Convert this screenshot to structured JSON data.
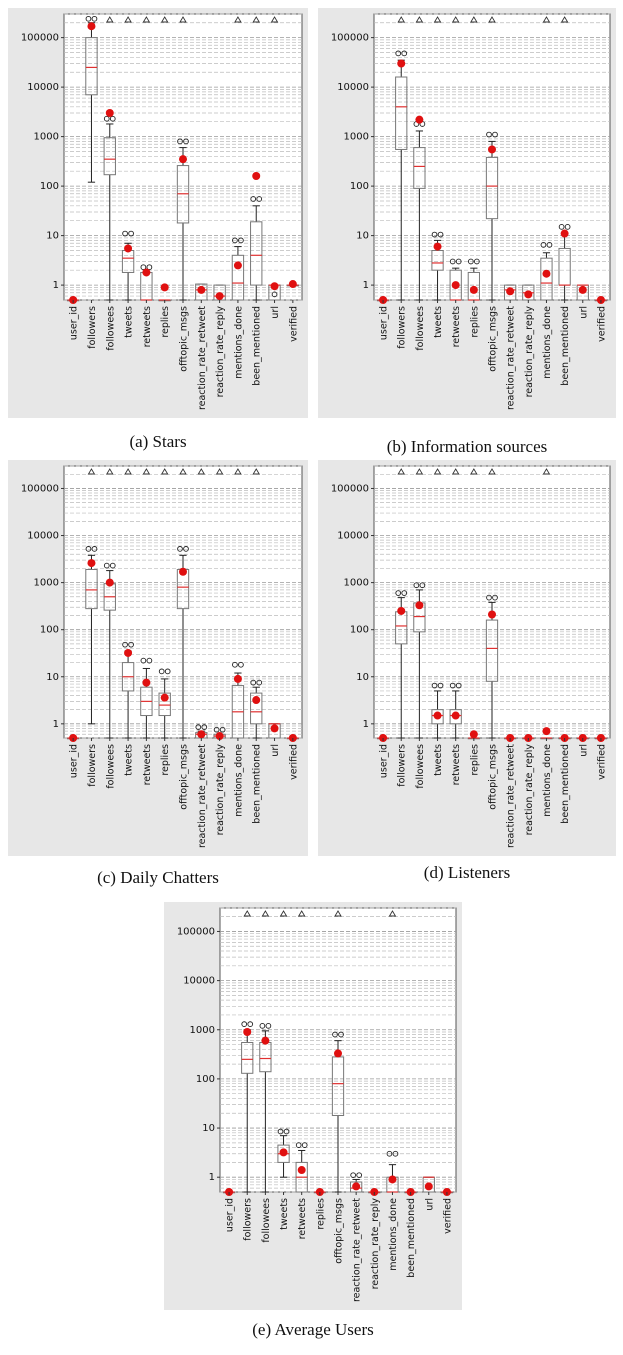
{
  "chart_data": [
    {
      "type": "boxplot",
      "title": "",
      "caption": "(a) Stars",
      "scale": "log",
      "ylim": [
        0.5,
        300000
      ],
      "yticks": [
        1,
        10,
        100,
        1000,
        10000,
        100000
      ],
      "ytick_labels": [
        "1",
        "10",
        "100",
        "1000",
        "10000",
        "100000"
      ],
      "grid": "dashed minor log gridlines",
      "categories": [
        "user_id",
        "followers",
        "followees",
        "tweets",
        "retweets",
        "replies",
        "offtopic_msgs",
        "reaction_rate_retweet",
        "reaction_rate_reply",
        "mentions_done",
        "been_mentioned",
        "url",
        "verified"
      ],
      "boxes": [
        {
          "q1": 0.5,
          "median": 0.5,
          "q3": 0.5,
          "low": 0.5,
          "high": 0.5,
          "mean": 0.5,
          "outliers": [],
          "top_marker": false
        },
        {
          "q1": 7000,
          "median": 25000,
          "q3": 100000,
          "low": 120,
          "high": 200000,
          "mean": 170000,
          "outliers": [
            240000,
            240000
          ],
          "top_marker": false
        },
        {
          "q1": 170,
          "median": 350,
          "q3": 950,
          "low": 0.5,
          "high": 1800,
          "mean": 3000,
          "outliers": [
            2300,
            2300
          ],
          "top_marker": true
        },
        {
          "q1": 1.8,
          "median": 3.5,
          "q3": 5,
          "low": 0.5,
          "high": 7,
          "mean": 5.5,
          "outliers": [
            11,
            11
          ],
          "top_marker": true
        },
        {
          "q1": 0.5,
          "median": 0.5,
          "q3": 1.8,
          "low": 0.5,
          "high": 1.8,
          "mean": 1.8,
          "outliers": [
            2.3,
            2.3
          ],
          "top_marker": true
        },
        {
          "q1": 0.5,
          "median": 0.5,
          "q3": 0.5,
          "low": 0.5,
          "high": 0.5,
          "mean": 0.9,
          "outliers": [],
          "top_marker": true
        },
        {
          "q1": 18,
          "median": 70,
          "q3": 260,
          "low": 0.5,
          "high": 600,
          "mean": 350,
          "outliers": [
            800,
            800
          ],
          "top_marker": true
        },
        {
          "q1": 0.5,
          "median": 0.8,
          "q3": 1.05,
          "low": 0.5,
          "high": 1.05,
          "mean": 0.8,
          "outliers": [],
          "top_marker": false
        },
        {
          "q1": 0.5,
          "median": 0.6,
          "q3": 1.0,
          "low": 0.5,
          "high": 1.0,
          "mean": 0.6,
          "outliers": [],
          "top_marker": false
        },
        {
          "q1": 0.5,
          "median": 1.1,
          "q3": 4,
          "low": 0.5,
          "high": 6,
          "mean": 2.5,
          "outliers": [
            8,
            8
          ],
          "top_marker": true
        },
        {
          "q1": 1,
          "median": 4,
          "q3": 19,
          "low": 0.5,
          "high": 40,
          "mean": 160,
          "outliers": [
            55,
            55
          ],
          "top_marker": true
        },
        {
          "q1": 0.5,
          "median": 1.0,
          "q3": 1.0,
          "low": 0.5,
          "high": 1.0,
          "mean": 0.95,
          "outliers": [
            0.65
          ],
          "top_marker": true
        },
        {
          "q1": 1.0,
          "median": 1.0,
          "q3": 1.0,
          "low": 1.0,
          "high": 1.0,
          "mean": 1.05,
          "outliers": [],
          "top_marker": false
        }
      ]
    },
    {
      "type": "boxplot",
      "title": "",
      "caption": "(b) Information sources",
      "scale": "log",
      "ylim": [
        0.5,
        300000
      ],
      "yticks": [
        1,
        10,
        100,
        1000,
        10000,
        100000
      ],
      "ytick_labels": [
        "1",
        "10",
        "100",
        "1000",
        "10000",
        "100000"
      ],
      "categories": [
        "user_id",
        "followers",
        "followees",
        "tweets",
        "retweets",
        "replies",
        "offtopic_msgs",
        "reaction_rate_retweet",
        "reaction_rate_reply",
        "mentions_done",
        "been_mentioned",
        "url",
        "verified"
      ],
      "boxes": [
        {
          "q1": 0.5,
          "median": 0.5,
          "q3": 0.5,
          "low": 0.5,
          "high": 0.5,
          "mean": 0.5,
          "outliers": [],
          "top_marker": false
        },
        {
          "q1": 550,
          "median": 4000,
          "q3": 16000,
          "low": 0.5,
          "high": 35000,
          "mean": 30000,
          "outliers": [
            48000,
            48000
          ],
          "top_marker": true
        },
        {
          "q1": 90,
          "median": 250,
          "q3": 600,
          "low": 0.5,
          "high": 1300,
          "mean": 2200,
          "outliers": [
            1800,
            1800
          ],
          "top_marker": true
        },
        {
          "q1": 2,
          "median": 2.8,
          "q3": 5,
          "low": 0.5,
          "high": 8,
          "mean": 6,
          "outliers": [
            10.5,
            10.5
          ],
          "top_marker": true
        },
        {
          "q1": 0.5,
          "median": 0.5,
          "q3": 2,
          "low": 0.5,
          "high": 2.2,
          "mean": 1.0,
          "outliers": [
            3,
            3
          ],
          "top_marker": true
        },
        {
          "q1": 0.5,
          "median": 0.5,
          "q3": 1.8,
          "low": 0.5,
          "high": 2.2,
          "mean": 0.8,
          "outliers": [
            3,
            3
          ],
          "top_marker": true
        },
        {
          "q1": 22,
          "median": 100,
          "q3": 380,
          "low": 0.5,
          "high": 800,
          "mean": 550,
          "outliers": [
            1100,
            1100
          ],
          "top_marker": true
        },
        {
          "q1": 0.5,
          "median": 0.8,
          "q3": 1.0,
          "low": 0.5,
          "high": 1.0,
          "mean": 0.75,
          "outliers": [],
          "top_marker": false
        },
        {
          "q1": 0.5,
          "median": 0.7,
          "q3": 1.0,
          "low": 0.5,
          "high": 1.0,
          "mean": 0.65,
          "outliers": [],
          "top_marker": false
        },
        {
          "q1": 0.5,
          "median": 1.1,
          "q3": 3.5,
          "low": 0.5,
          "high": 4.5,
          "mean": 1.7,
          "outliers": [
            6.5,
            6.5
          ],
          "top_marker": true
        },
        {
          "q1": 1.0,
          "median": 1.0,
          "q3": 5.5,
          "low": 0.5,
          "high": 11,
          "mean": 11,
          "outliers": [
            15,
            15
          ],
          "top_marker": true
        },
        {
          "q1": 0.5,
          "median": 1.0,
          "q3": 1.0,
          "low": 0.5,
          "high": 1.0,
          "mean": 0.8,
          "outliers": [],
          "top_marker": false
        },
        {
          "q1": 0.5,
          "median": 0.5,
          "q3": 0.5,
          "low": 0.5,
          "high": 0.5,
          "mean": 0.5,
          "outliers": [],
          "top_marker": false
        }
      ]
    },
    {
      "type": "boxplot",
      "title": "",
      "caption": "(c) Daily Chatters",
      "scale": "log",
      "ylim": [
        0.5,
        300000
      ],
      "yticks": [
        1,
        10,
        100,
        1000,
        10000,
        100000
      ],
      "ytick_labels": [
        "1",
        "10",
        "100",
        "1000",
        "10000",
        "100000"
      ],
      "categories": [
        "user_id",
        "followers",
        "followees",
        "tweets",
        "retweets",
        "replies",
        "offtopic_msgs",
        "reaction_rate_retweet",
        "reaction_rate_reply",
        "mentions_done",
        "been_mentioned",
        "url",
        "verified"
      ],
      "boxes": [
        {
          "q1": 0.5,
          "median": 0.5,
          "q3": 0.5,
          "low": 0.5,
          "high": 0.5,
          "mean": 0.5,
          "outliers": [],
          "top_marker": false
        },
        {
          "q1": 280,
          "median": 700,
          "q3": 1900,
          "low": 1,
          "high": 3800,
          "mean": 2600,
          "outliers": [
            5200,
            5200
          ],
          "top_marker": true
        },
        {
          "q1": 260,
          "median": 500,
          "q3": 950,
          "low": 0.5,
          "high": 1800,
          "mean": 1000,
          "outliers": [
            2300,
            2300
          ],
          "top_marker": true
        },
        {
          "q1": 5,
          "median": 10,
          "q3": 20,
          "low": 0.5,
          "high": 35,
          "mean": 32,
          "outliers": [
            48,
            48
          ],
          "top_marker": true
        },
        {
          "q1": 1.5,
          "median": 3,
          "q3": 6,
          "low": 0.5,
          "high": 15,
          "mean": 7.5,
          "outliers": [
            22,
            22
          ],
          "top_marker": true
        },
        {
          "q1": 1.5,
          "median": 2.5,
          "q3": 4.5,
          "low": 0.5,
          "high": 9,
          "mean": 3.6,
          "outliers": [
            13,
            13
          ],
          "top_marker": true
        },
        {
          "q1": 280,
          "median": 800,
          "q3": 1900,
          "low": 0.5,
          "high": 3800,
          "mean": 1700,
          "outliers": [
            5200,
            5200
          ],
          "top_marker": true
        },
        {
          "q1": 0.5,
          "median": 0.6,
          "q3": 0.65,
          "low": 0.5,
          "high": 0.7,
          "mean": 0.6,
          "outliers": [
            0.85,
            0.85
          ],
          "top_marker": true
        },
        {
          "q1": 0.5,
          "median": 0.55,
          "q3": 0.6,
          "low": 0.5,
          "high": 0.6,
          "mean": 0.55,
          "outliers": [
            0.75,
            0.75
          ],
          "top_marker": true
        },
        {
          "q1": 0.5,
          "median": 1.8,
          "q3": 6.5,
          "low": 0.5,
          "high": 12,
          "mean": 9,
          "outliers": [
            18,
            18
          ],
          "top_marker": true
        },
        {
          "q1": 1,
          "median": 1.8,
          "q3": 4.5,
          "low": 0.5,
          "high": 6,
          "mean": 3.2,
          "outliers": [
            7.5,
            7.5
          ],
          "top_marker": true
        },
        {
          "q1": 0.5,
          "median": 1.0,
          "q3": 1.0,
          "low": 0.5,
          "high": 1.0,
          "mean": 0.8,
          "outliers": [],
          "top_marker": false
        },
        {
          "q1": 0.5,
          "median": 0.5,
          "q3": 0.5,
          "low": 0.5,
          "high": 0.5,
          "mean": 0.5,
          "outliers": [],
          "top_marker": false
        }
      ]
    },
    {
      "type": "boxplot",
      "title": "",
      "caption": "(d) Listeners",
      "scale": "log",
      "ylim": [
        0.5,
        300000
      ],
      "yticks": [
        1,
        10,
        100,
        1000,
        10000,
        100000
      ],
      "ytick_labels": [
        "1",
        "10",
        "100",
        "1000",
        "10000",
        "100000"
      ],
      "categories": [
        "user_id",
        "followers",
        "followees",
        "tweets",
        "retweets",
        "replies",
        "offtopic_msgs",
        "reaction_rate_retweet",
        "reaction_rate_reply",
        "mentions_done",
        "been_mentioned",
        "url",
        "verified"
      ],
      "boxes": [
        {
          "q1": 0.5,
          "median": 0.5,
          "q3": 0.5,
          "low": 0.5,
          "high": 0.5,
          "mean": 0.5,
          "outliers": [],
          "top_marker": false
        },
        {
          "q1": 50,
          "median": 120,
          "q3": 240,
          "low": 0.5,
          "high": 480,
          "mean": 250,
          "outliers": [
            600,
            600
          ],
          "top_marker": true
        },
        {
          "q1": 90,
          "median": 190,
          "q3": 370,
          "low": 0.5,
          "high": 700,
          "mean": 330,
          "outliers": [
            880,
            880
          ],
          "top_marker": true
        },
        {
          "q1": 1.0,
          "median": 1.5,
          "q3": 2.0,
          "low": 0.5,
          "high": 5,
          "mean": 1.5,
          "outliers": [
            6.5,
            6.5
          ],
          "top_marker": true
        },
        {
          "q1": 1.0,
          "median": 1.5,
          "q3": 2.0,
          "low": 0.5,
          "high": 5,
          "mean": 1.5,
          "outliers": [
            6.5,
            6.5
          ],
          "top_marker": true
        },
        {
          "q1": 0.5,
          "median": 0.5,
          "q3": 0.5,
          "low": 0.5,
          "high": 0.5,
          "mean": 0.6,
          "outliers": [],
          "top_marker": true
        },
        {
          "q1": 8,
          "median": 40,
          "q3": 160,
          "low": 0.5,
          "high": 380,
          "mean": 210,
          "outliers": [
            480,
            480
          ],
          "top_marker": true
        },
        {
          "q1": 0.5,
          "median": 0.5,
          "q3": 0.5,
          "low": 0.5,
          "high": 0.5,
          "mean": 0.5,
          "outliers": [],
          "top_marker": false
        },
        {
          "q1": 0.5,
          "median": 0.5,
          "q3": 0.5,
          "low": 0.5,
          "high": 0.5,
          "mean": 0.5,
          "outliers": [],
          "top_marker": false
        },
        {
          "q1": 0.5,
          "median": 0.5,
          "q3": 0.5,
          "low": 0.5,
          "high": 0.5,
          "mean": 0.7,
          "outliers": [],
          "top_marker": true
        },
        {
          "q1": 0.5,
          "median": 0.5,
          "q3": 0.5,
          "low": 0.5,
          "high": 0.5,
          "mean": 0.5,
          "outliers": [],
          "top_marker": false
        },
        {
          "q1": 0.5,
          "median": 0.5,
          "q3": 0.5,
          "low": 0.5,
          "high": 0.5,
          "mean": 0.5,
          "outliers": [],
          "top_marker": false
        },
        {
          "q1": 0.5,
          "median": 0.5,
          "q3": 0.5,
          "low": 0.5,
          "high": 0.5,
          "mean": 0.5,
          "outliers": [],
          "top_marker": false
        }
      ]
    },
    {
      "type": "boxplot",
      "title": "",
      "caption": "(e) Average Users",
      "scale": "log",
      "ylim": [
        0.5,
        300000
      ],
      "yticks": [
        1,
        10,
        100,
        1000,
        10000,
        100000
      ],
      "ytick_labels": [
        "1",
        "10",
        "100",
        "1000",
        "10000",
        "100000"
      ],
      "categories": [
        "user_id",
        "followers",
        "followees",
        "tweets",
        "retweets",
        "replies",
        "offtopic_msgs",
        "reaction_rate_retweet",
        "reaction_rate_reply",
        "mentions_done",
        "been_mentioned",
        "url",
        "verified"
      ],
      "boxes": [
        {
          "q1": 0.5,
          "median": 0.5,
          "q3": 0.5,
          "low": 0.5,
          "high": 0.5,
          "mean": 0.5,
          "outliers": [],
          "top_marker": false
        },
        {
          "q1": 130,
          "median": 250,
          "q3": 550,
          "low": 0.5,
          "high": 1000,
          "mean": 900,
          "outliers": [
            1300,
            1300
          ],
          "top_marker": true
        },
        {
          "q1": 140,
          "median": 260,
          "q3": 550,
          "low": 0.5,
          "high": 950,
          "mean": 600,
          "outliers": [
            1200,
            1200
          ],
          "top_marker": true
        },
        {
          "q1": 2,
          "median": 3,
          "q3": 4.5,
          "low": 1,
          "high": 7,
          "mean": 3.2,
          "outliers": [
            8.5,
            8.5
          ],
          "top_marker": true
        },
        {
          "q1": 0.5,
          "median": 1.0,
          "q3": 2,
          "low": 0.5,
          "high": 3.5,
          "mean": 1.4,
          "outliers": [
            4.5,
            4.5
          ],
          "top_marker": true
        },
        {
          "q1": 0.5,
          "median": 0.5,
          "q3": 0.5,
          "low": 0.5,
          "high": 0.5,
          "mean": 0.5,
          "outliers": [],
          "top_marker": false
        },
        {
          "q1": 18,
          "median": 80,
          "q3": 280,
          "low": 0.5,
          "high": 600,
          "mean": 330,
          "outliers": [
            800,
            800
          ],
          "top_marker": true
        },
        {
          "q1": 0.5,
          "median": 0.6,
          "q3": 0.8,
          "low": 0.5,
          "high": 0.9,
          "mean": 0.65,
          "outliers": [
            1.1,
            1.1
          ],
          "top_marker": false
        },
        {
          "q1": 0.5,
          "median": 0.5,
          "q3": 0.5,
          "low": 0.5,
          "high": 0.5,
          "mean": 0.5,
          "outliers": [],
          "top_marker": false
        },
        {
          "q1": 0.5,
          "median": 0.5,
          "q3": 1.0,
          "low": 0.5,
          "high": 1.8,
          "mean": 0.9,
          "outliers": [
            3,
            3
          ],
          "top_marker": true
        },
        {
          "q1": 0.5,
          "median": 0.5,
          "q3": 0.5,
          "low": 0.5,
          "high": 0.5,
          "mean": 0.5,
          "outliers": [],
          "top_marker": false
        },
        {
          "q1": 0.5,
          "median": 1.0,
          "q3": 1.0,
          "low": 0.5,
          "high": 1.0,
          "mean": 0.65,
          "outliers": [],
          "top_marker": false
        },
        {
          "q1": 0.5,
          "median": 0.5,
          "q3": 0.5,
          "low": 0.5,
          "high": 0.5,
          "mean": 0.5,
          "outliers": [],
          "top_marker": false
        }
      ]
    }
  ]
}
